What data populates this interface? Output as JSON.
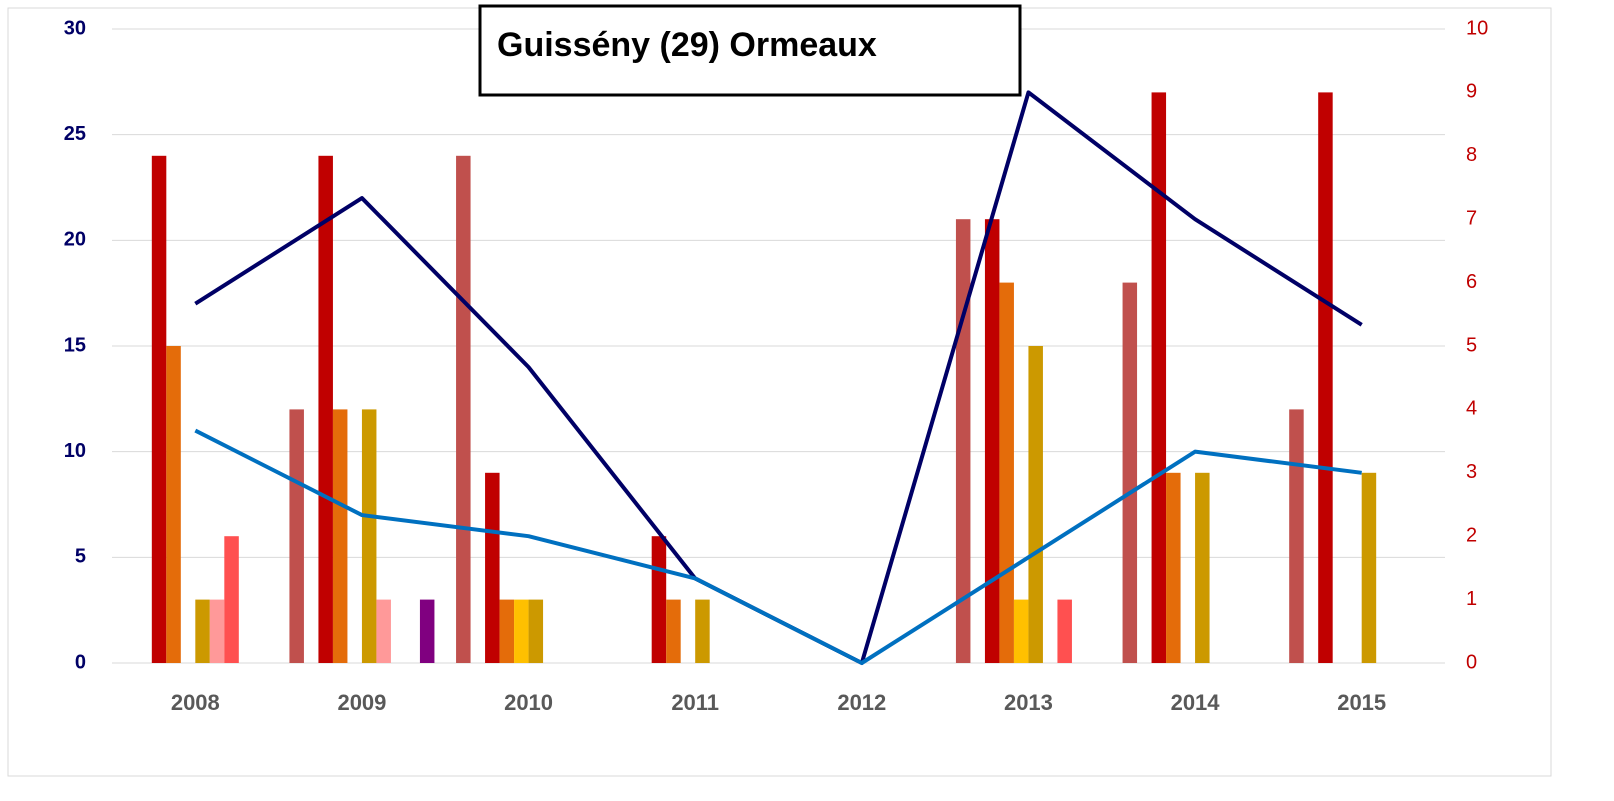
{
  "chart_data": {
    "type": "bar",
    "title": "Guissény (29) Ormeaux",
    "categories": [
      "2008",
      "2009",
      "2010",
      "2011",
      "2012",
      "2013",
      "2014",
      "2015"
    ],
    "ylim": [
      0,
      30
    ],
    "yticks": [
      0,
      5,
      10,
      15,
      20,
      25,
      30
    ],
    "y2lim": [
      0,
      10
    ],
    "y2ticks": [
      0,
      1,
      2,
      3,
      4,
      5,
      6,
      7,
      8,
      9,
      10
    ],
    "grid": true,
    "series": [
      {
        "color": "#C0504D",
        "axis": "y2",
        "values": [
          0,
          4,
          8,
          0,
          0,
          7,
          6,
          4
        ]
      },
      {
        "color": "#C00000",
        "axis": "y2",
        "values": [
          8,
          8,
          3,
          2,
          0,
          7,
          9,
          9
        ]
      },
      {
        "color": "#E46C0A",
        "axis": "y2",
        "values": [
          5,
          4,
          1,
          1,
          0,
          6,
          3,
          0
        ]
      },
      {
        "color": "#FFC000",
        "axis": "y2",
        "values": [
          0,
          0,
          1,
          0,
          0,
          1,
          0,
          0
        ]
      },
      {
        "color": "#CC9900",
        "axis": "y2",
        "values": [
          1,
          4,
          1,
          1,
          0,
          5,
          3,
          3
        ]
      },
      {
        "color": "#FF9999",
        "axis": "y2",
        "values": [
          1,
          1,
          0,
          0,
          0,
          0,
          0,
          0
        ]
      },
      {
        "color": "#FF5050",
        "axis": "y2",
        "values": [
          2,
          0,
          0,
          0,
          0,
          1,
          0,
          0
        ]
      },
      {
        "color": "#800080",
        "axis": "y2",
        "values": [
          0,
          1,
          0,
          0,
          0,
          0,
          0,
          0
        ]
      },
      {
        "type": "line",
        "color": "#000066",
        "values": [
          17,
          22,
          14,
          4,
          0,
          27,
          21,
          16
        ]
      },
      {
        "type": "line",
        "color": "#0070C0",
        "values": [
          11,
          7,
          6,
          4,
          0,
          5,
          10,
          9
        ]
      }
    ]
  }
}
